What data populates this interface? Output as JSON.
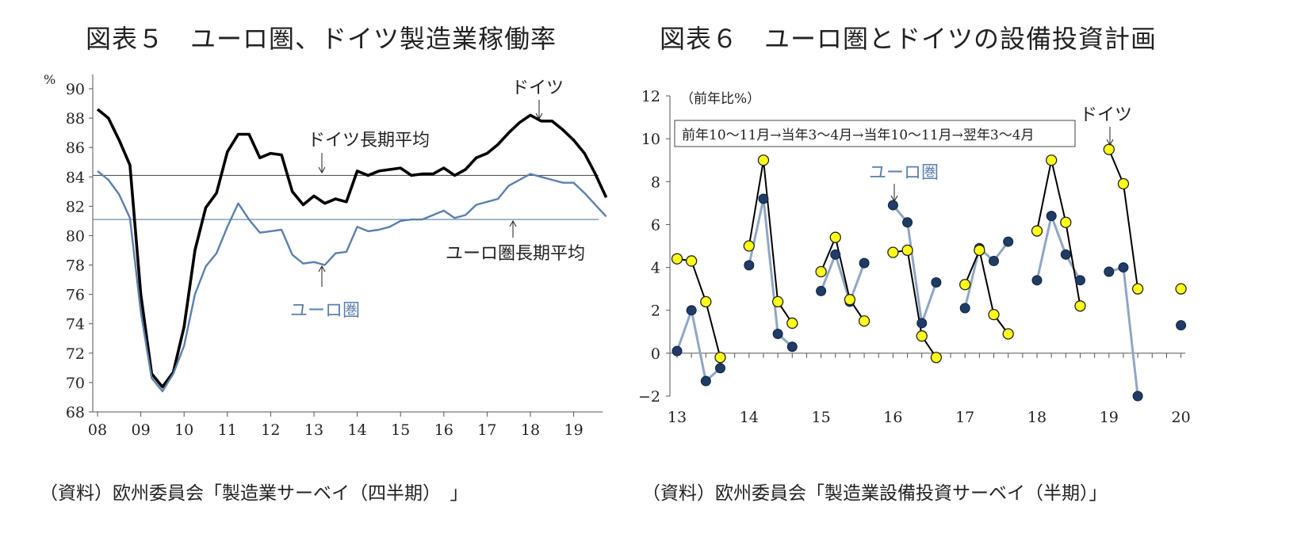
{
  "charts": [
    {
      "title": "図表５　ユーロ圏、ドイツ製造業稼働率",
      "source": "（資料）欧州委員会「製造業サーベイ（四半期）　」"
    },
    {
      "title": "図表６　ユーロ圏とドイツの設備投資計画",
      "source": "（資料）欧州委員会「製造業設備投資サーベイ（半期）」"
    }
  ],
  "chart_data": [
    {
      "type": "line",
      "ylabel": "%",
      "ylim": [
        68,
        90
      ],
      "yticks": [
        "68",
        "70",
        "72",
        "74",
        "76",
        "78",
        "80",
        "82",
        "84",
        "86",
        "88",
        "90"
      ],
      "xticks": [
        "08",
        "09",
        "10",
        "11",
        "12",
        "13",
        "14",
        "15",
        "16",
        "17",
        "18",
        "19"
      ],
      "x_start_year": 2008,
      "quarters_per_year": 4,
      "grid": false,
      "series": [
        {
          "name": "ドイツ",
          "color": "#000000",
          "values": [
            88.6,
            88.0,
            86.5,
            84.8,
            76.0,
            70.6,
            69.7,
            70.7,
            73.8,
            79.0,
            81.9,
            82.9,
            85.7,
            86.9,
            86.9,
            85.3,
            85.6,
            85.5,
            83.0,
            82.1,
            82.7,
            82.2,
            82.5,
            82.3,
            84.4,
            84.1,
            84.4,
            84.5,
            84.6,
            84.1,
            84.2,
            84.2,
            84.6,
            84.1,
            84.5,
            85.3,
            85.6,
            86.2,
            87.0,
            87.7,
            88.2,
            87.8,
            87.8,
            87.2,
            86.5,
            85.6,
            84.2,
            82.6
          ]
        },
        {
          "name": "ユーロ圏",
          "color": "#5b7fad",
          "values": [
            84.4,
            83.8,
            82.8,
            81.2,
            74.8,
            70.3,
            69.4,
            70.6,
            72.5,
            76.0,
            77.9,
            78.8,
            80.6,
            82.2,
            81.1,
            80.2,
            80.3,
            80.4,
            78.7,
            78.1,
            78.2,
            78.0,
            78.8,
            78.9,
            80.6,
            80.3,
            80.4,
            80.6,
            81.0,
            81.1,
            81.1,
            81.4,
            81.7,
            81.2,
            81.4,
            82.1,
            82.3,
            82.5,
            83.4,
            83.8,
            84.2,
            84.0,
            83.8,
            83.6,
            83.6,
            82.9,
            82.1,
            81.3
          ]
        }
      ],
      "reference_lines": [
        {
          "name": "ドイツ長期平均",
          "value": 84.1
        },
        {
          "name": "ユーロ圏長期平均",
          "value": 81.1
        }
      ],
      "annotations": [
        "ドイツ",
        "ドイツ長期平均",
        "ユーロ圏長期平均",
        "ユーロ圏"
      ]
    },
    {
      "type": "line",
      "ylabel": "（前年比%）",
      "legend_note": "前年10～11月→当年3～4月→当年10～11月→翌年3～4月",
      "ylim": [
        -2,
        12
      ],
      "yticks": [
        "−2",
        "0",
        "2",
        "4",
        "6",
        "8",
        "10",
        "12"
      ],
      "xticks": [
        "13",
        "14",
        "15",
        "16",
        "17",
        "18",
        "19",
        "20"
      ],
      "groups": [
        {
          "year": "13",
          "germany": [
            4.4,
            4.3,
            2.4,
            -0.2
          ],
          "euro": [
            0.1,
            2.0,
            -1.3,
            -0.7
          ]
        },
        {
          "year": "14",
          "germany": [
            5.0,
            9.0,
            2.4,
            1.4
          ],
          "euro": [
            4.1,
            7.2,
            0.9,
            0.3
          ]
        },
        {
          "year": "15",
          "germany": [
            3.8,
            5.4,
            2.5,
            1.5
          ],
          "euro": [
            2.9,
            4.6,
            2.4,
            4.2
          ]
        },
        {
          "year": "16",
          "germany": [
            4.7,
            4.8,
            0.8,
            -0.2
          ],
          "euro": [
            6.9,
            6.1,
            1.4,
            3.3
          ]
        },
        {
          "year": "17",
          "germany": [
            3.2,
            4.8,
            1.8,
            0.9
          ],
          "euro": [
            2.1,
            4.9,
            4.3,
            5.2
          ]
        },
        {
          "year": "18",
          "germany": [
            5.7,
            9.0,
            6.1,
            2.2
          ],
          "euro": [
            3.4,
            6.4,
            4.6,
            3.4
          ]
        },
        {
          "year": "19",
          "germany": [
            9.5,
            7.9,
            3.0
          ],
          "euro": [
            3.8,
            4.0,
            -2.0
          ]
        },
        {
          "year": "20",
          "germany": [
            3.0
          ],
          "euro": [
            1.3
          ]
        }
      ],
      "series": [
        {
          "name": "ドイツ",
          "color": "#000000",
          "marker_color": "#ffff1a"
        },
        {
          "name": "ユーロ圏",
          "color": "#8fa6c4",
          "marker_color": "#1f3b66"
        }
      ],
      "annotations": [
        "ドイツ",
        "ユーロ圏"
      ]
    }
  ]
}
